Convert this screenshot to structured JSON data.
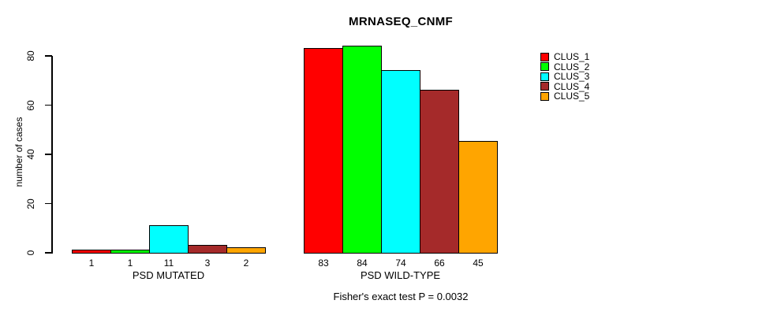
{
  "chart_data": {
    "type": "bar",
    "title": "MRNASEQ_CNMF",
    "ylabel": "number of cases",
    "xlabel": "",
    "ylim": [
      0,
      80
    ],
    "yticks": [
      0,
      20,
      40,
      60,
      80
    ],
    "grid": false,
    "legend_position": "right",
    "categories": [
      "PSD MUTATED",
      "PSD WILD-TYPE"
    ],
    "series": [
      {
        "name": "CLUS_1",
        "color": "#FF0000",
        "values": [
          1,
          83
        ]
      },
      {
        "name": "CLUS_2",
        "color": "#00FF00",
        "values": [
          1,
          84
        ]
      },
      {
        "name": "CLUS_3",
        "color": "#00FFFF",
        "values": [
          11,
          74
        ]
      },
      {
        "name": "CLUS_4",
        "color": "#A52A2A",
        "values": [
          3,
          66
        ]
      },
      {
        "name": "CLUS_5",
        "color": "#FFA500",
        "values": [
          2,
          45
        ]
      }
    ],
    "value_labels_shown": true,
    "footer": "Fisher's exact test P = 0.0032",
    "bar_border_color": "#000000",
    "axis_color": "#000000",
    "background_color": "#FFFFFF"
  }
}
